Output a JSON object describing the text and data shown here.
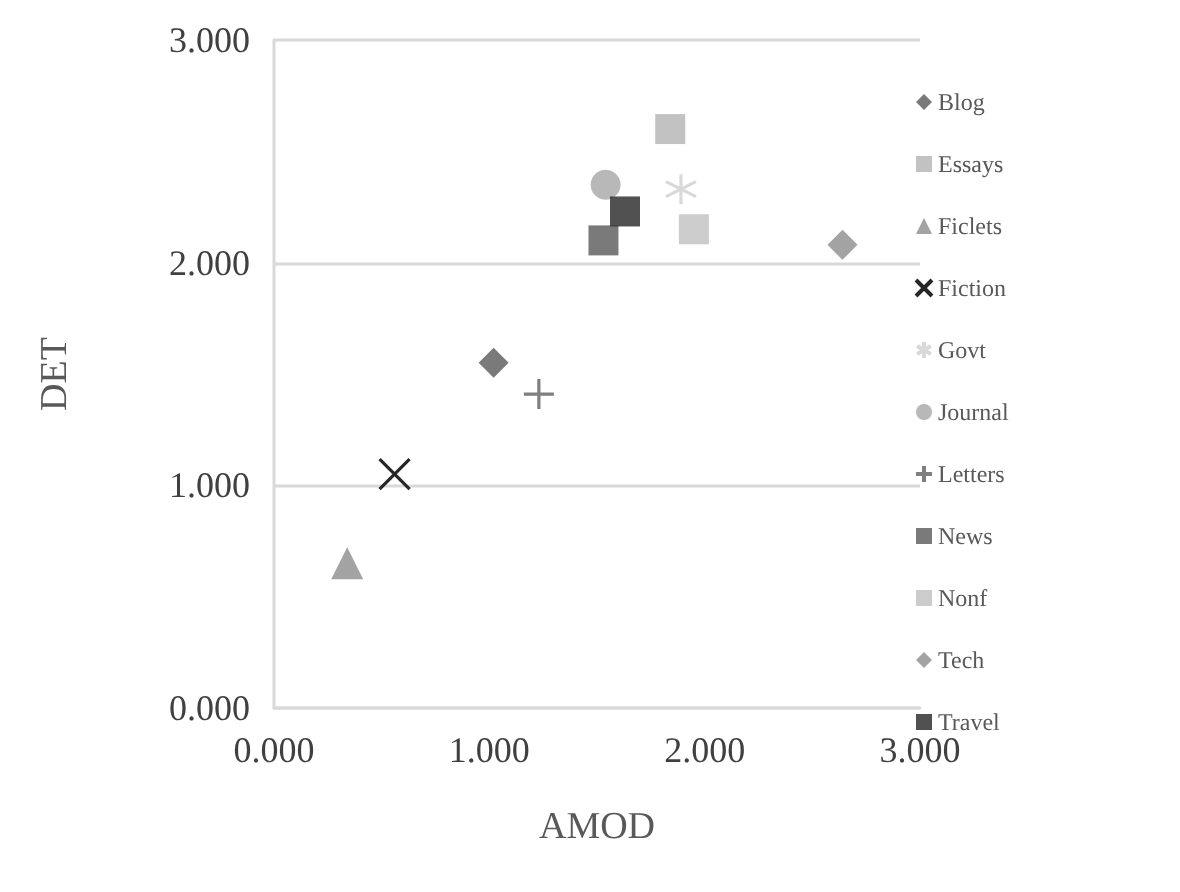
{
  "chart_data": {
    "type": "scatter",
    "xlabel": "AMOD",
    "ylabel": "DET",
    "xlim": [
      0,
      3
    ],
    "xticks": [
      {
        "value": 0,
        "label": "0.000"
      },
      {
        "value": 1,
        "label": "1.000"
      },
      {
        "value": 2,
        "label": "2.000"
      },
      {
        "value": 3,
        "label": "3.000"
      }
    ],
    "ylim": [
      0,
      3
    ],
    "yticks": [
      {
        "value": 0,
        "label": "0.000"
      },
      {
        "value": 1,
        "label": "1.000"
      },
      {
        "value": 2,
        "label": "2.000"
      },
      {
        "value": 3,
        "label": "3.000"
      }
    ],
    "grid": "y",
    "legend": "right",
    "series": [
      {
        "name": "Blog",
        "color": "#595959",
        "marker": "diamond",
        "x": [
          1.02
        ],
        "values": [
          1.55
        ]
      },
      {
        "name": "Essays",
        "color": "#b3b3b3",
        "marker": "square",
        "x": [
          1.84
        ],
        "values": [
          2.6
        ]
      },
      {
        "name": "Ficlets",
        "color": "#8c8c8c",
        "marker": "triangle",
        "x": [
          0.34
        ],
        "values": [
          0.65
        ]
      },
      {
        "name": "Fiction",
        "color": "#262626",
        "marker": "x",
        "x": [
          0.56
        ],
        "values": [
          1.05
        ]
      },
      {
        "name": "Govt",
        "color": "#d9d9d9",
        "marker": "cross",
        "x": [
          1.89
        ],
        "values": [
          2.33
        ]
      },
      {
        "name": "Journal",
        "color": "#a6a6a6",
        "marker": "circle",
        "x": [
          1.54
        ],
        "values": [
          2.35
        ]
      },
      {
        "name": "Letters",
        "color": "#7f7f7f",
        "marker": "plus",
        "x": [
          1.23
        ],
        "values": [
          1.41
        ]
      },
      {
        "name": "News",
        "color": "#595959",
        "marker": "square",
        "x": [
          1.53
        ],
        "values": [
          2.1
        ]
      },
      {
        "name": "Nonf",
        "color": "#bfbfbf",
        "marker": "square",
        "x": [
          1.95
        ],
        "values": [
          2.15
        ]
      },
      {
        "name": "Tech",
        "color": "#8c8c8c",
        "marker": "diamond",
        "x": [
          2.64
        ],
        "values": [
          2.08
        ]
      },
      {
        "name": "Travel",
        "color": "#262626",
        "marker": "square",
        "x": [
          1.63
        ],
        "values": [
          2.23
        ]
      }
    ]
  }
}
